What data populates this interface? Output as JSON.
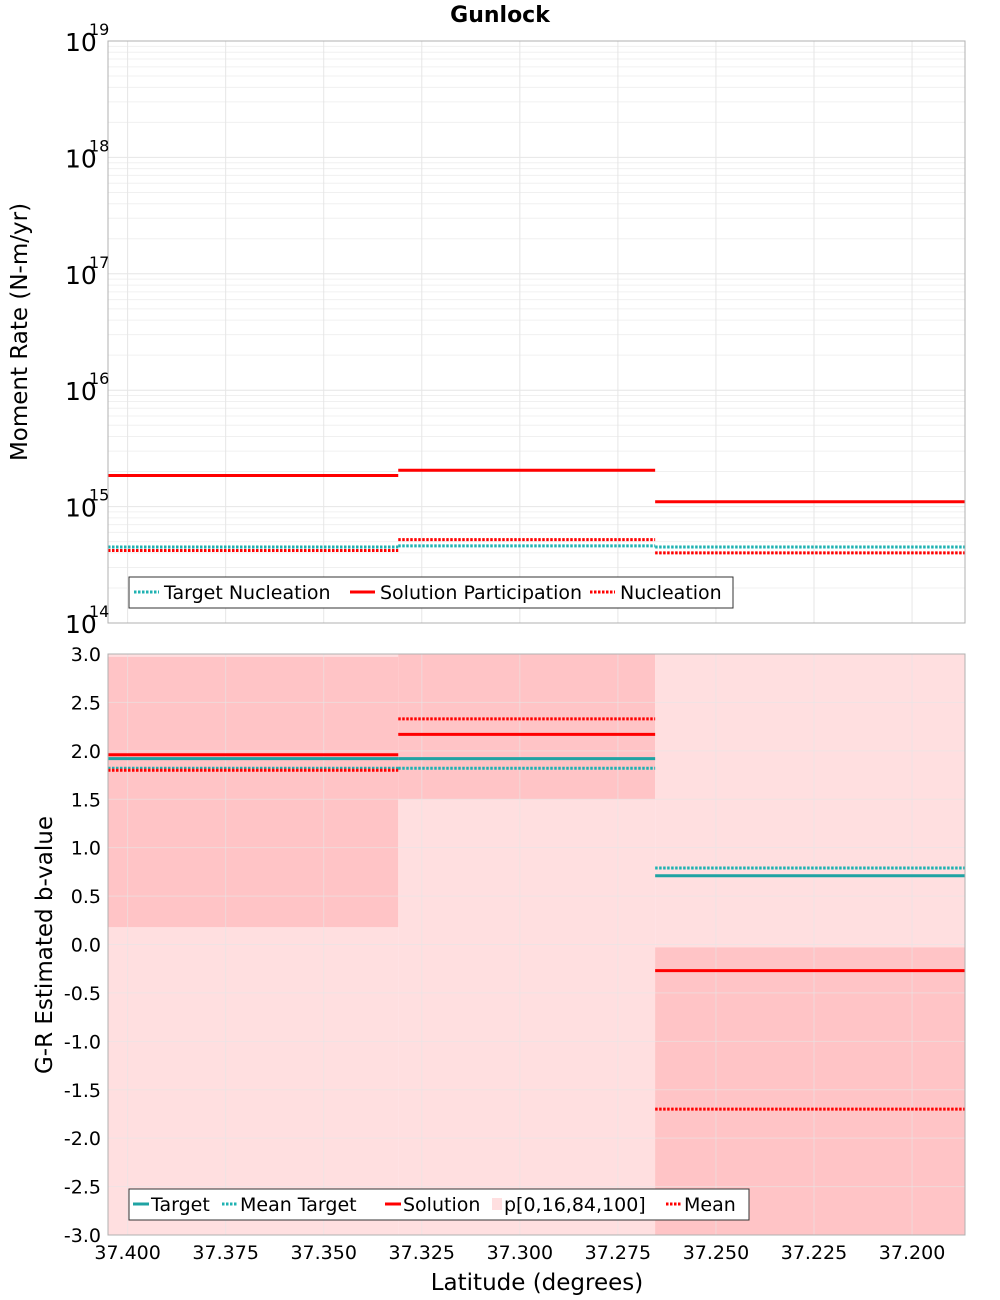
{
  "chart_data": [
    {
      "type": "line",
      "title": "Gunlock",
      "xlabel": "",
      "ylabel": "Moment Rate (N-m/yr)",
      "yscale": "log",
      "ylim": [
        100000000000000.0,
        1e+19
      ],
      "xlim": [
        37.405,
        37.1865
      ],
      "x_reversed": true,
      "y_ticks": [
        {
          "value": 100000000000000.0,
          "base": "10",
          "exp": "14"
        },
        {
          "value": 1000000000000000.0,
          "base": "10",
          "exp": "15"
        },
        {
          "value": 1e+16,
          "base": "10",
          "exp": "16"
        },
        {
          "value": 1e+17,
          "base": "10",
          "exp": "17"
        },
        {
          "value": 1e+18,
          "base": "10",
          "exp": "18"
        },
        {
          "value": 1e+19,
          "base": "10",
          "exp": "19"
        }
      ],
      "grid": true,
      "legend_position": "bottom-left",
      "series": [
        {
          "name": "Target Nucleation",
          "color": "#1fb2b2",
          "style": "dotted",
          "segments": [
            [
              37.405,
              37.331,
              450000000000000.0
            ],
            [
              37.331,
              37.2655,
              460000000000000.0
            ],
            [
              37.2655,
              37.1865,
              450000000000000.0
            ]
          ]
        },
        {
          "name": "Solution Participation",
          "color": "#ff0000",
          "style": "solid",
          "segments": [
            [
              37.405,
              37.331,
              1850000000000000.0
            ],
            [
              37.331,
              37.2655,
              2050000000000000.0
            ],
            [
              37.2655,
              37.1865,
              1100000000000000.0
            ]
          ]
        },
        {
          "name": "Nucleation",
          "color": "#ff0000",
          "style": "dotted",
          "segments": [
            [
              37.405,
              37.331,
              420000000000000.0
            ],
            [
              37.331,
              37.2655,
              520000000000000.0
            ],
            [
              37.2655,
              37.1865,
              400000000000000.0
            ]
          ]
        }
      ]
    },
    {
      "type": "line",
      "title": "",
      "xlabel": "Latitude (degrees)",
      "ylabel": "G-R Estimated b-value",
      "ylim": [
        -3.0,
        3.0
      ],
      "xlim": [
        37.405,
        37.1865
      ],
      "x_reversed": true,
      "y_ticks": [
        "3.0",
        "2.5",
        "2.0",
        "1.5",
        "1.0",
        "0.5",
        "0.0",
        "-0.5",
        "-1.0",
        "-1.5",
        "-2.0",
        "-2.5",
        "-3.0"
      ],
      "x_ticks": [
        "37.400",
        "37.375",
        "37.350",
        "37.325",
        "37.300",
        "37.275",
        "37.250",
        "37.225",
        "37.200"
      ],
      "grid": true,
      "legend_position": "bottom-left",
      "bands": [
        {
          "x0": 37.405,
          "x1": 37.331,
          "p0": -3.0,
          "p16": 0.18,
          "p84": 2.97,
          "p100": 3.0
        },
        {
          "x0": 37.331,
          "x1": 37.2655,
          "p0": -3.0,
          "p16": 1.5,
          "p84": 3.0,
          "p100": 3.0
        },
        {
          "x0": 37.2655,
          "x1": 37.1865,
          "p0": -3.0,
          "p16": -3.0,
          "p84": -0.03,
          "p100": 3.0
        }
      ],
      "series": [
        {
          "name": "Target",
          "color": "#1fa3a3",
          "style": "solid",
          "segments": [
            [
              37.405,
              37.331,
              1.92
            ],
            [
              37.331,
              37.2655,
              1.92
            ],
            [
              37.2655,
              37.1865,
              0.71
            ]
          ]
        },
        {
          "name": "Mean Target",
          "color": "#1fb2b2",
          "style": "dotted",
          "segments": [
            [
              37.405,
              37.331,
              1.82
            ],
            [
              37.331,
              37.2655,
              1.82
            ],
            [
              37.2655,
              37.1865,
              0.79
            ]
          ]
        },
        {
          "name": "Solution",
          "color": "#ff0000",
          "style": "solid",
          "segments": [
            [
              37.405,
              37.331,
              1.96
            ],
            [
              37.331,
              37.2655,
              2.17
            ],
            [
              37.2655,
              37.1865,
              -0.27
            ]
          ]
        },
        {
          "name": "p[0,16,84,100]",
          "color": "#ffdfe0",
          "style": "band"
        },
        {
          "name": "Mean",
          "color": "#ff0000",
          "style": "dotted",
          "segments": [
            [
              37.405,
              37.331,
              1.8
            ],
            [
              37.331,
              37.2655,
              2.33
            ],
            [
              37.2655,
              37.1865,
              -1.7
            ]
          ]
        }
      ]
    }
  ],
  "colors": {
    "band_outer": "#ffdfe0",
    "band_inner": "#ffc4c6",
    "target": "#1fa3a3",
    "solution": "#ff0000"
  }
}
